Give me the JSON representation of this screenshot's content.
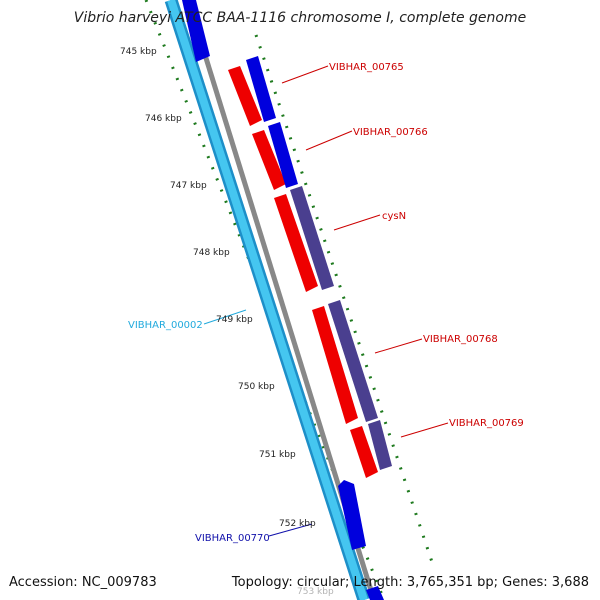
{
  "title": "Vibrio harveyi ATCC BAA-1116 chromosome I, complete genome",
  "footer": {
    "accession": "Accession: NC_009783",
    "topology": "Topology: circular; Length: 3,765,351 bp; Genes: 3,688"
  },
  "ticks": [
    "745 kbp",
    "746 kbp",
    "747 kbp",
    "748 kbp",
    "749 kbp",
    "750 kbp",
    "751 kbp",
    "752 kbp",
    "753 kbp"
  ],
  "genes": {
    "vibhar_00765": "VIBHAR_00765",
    "vibhar_00766": "VIBHAR_00766",
    "cysn": "cysN",
    "vibhar_00768": "VIBHAR_00768",
    "vibhar_00769": "VIBHAR_00769",
    "vibhar_00002": "VIBHAR_00002",
    "vibhar_00770": "VIBHAR_00770"
  },
  "colors": {
    "forward_cds": "#ee0000",
    "reverse_cds": "#0000dd",
    "purple_feature": "#4a3f8f",
    "steelblue_feature": "#4a6aa0",
    "cyan_track": "#33c0ee",
    "backbone": "#888888",
    "tick": "#1e7a1e",
    "red_label": "#cc0000",
    "cyan_label": "#22aadd",
    "blue_label": "#1010aa"
  }
}
